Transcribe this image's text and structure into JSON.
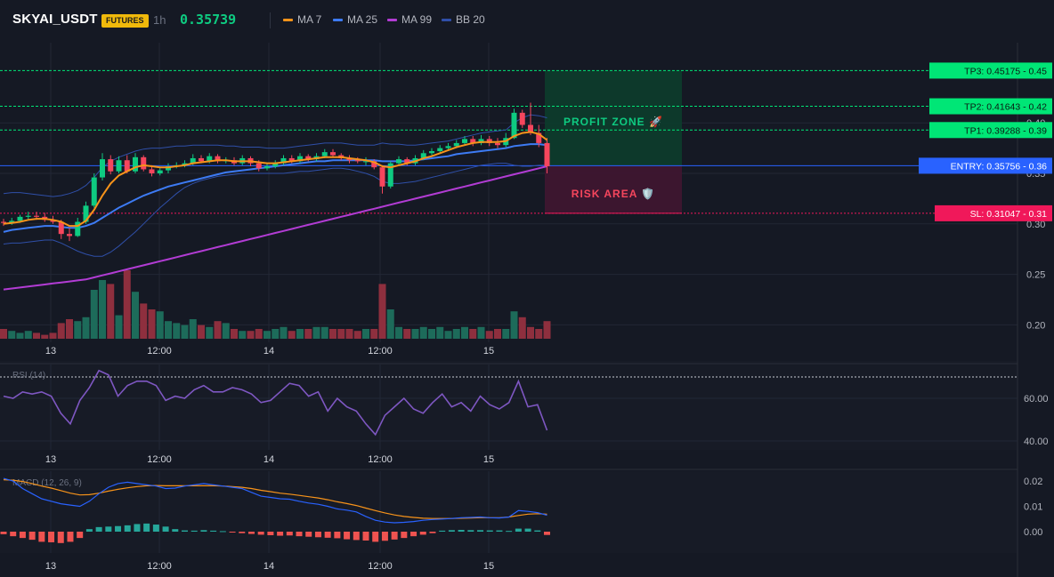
{
  "header": {
    "symbol": "SKYAI_USDT",
    "badge": "FUTURES",
    "interval": "1h",
    "price": "0.35739",
    "legend": [
      {
        "label": "MA 7",
        "color": "#f7931a"
      },
      {
        "label": "MA 25",
        "color": "#3d7bf4"
      },
      {
        "label": "MA 99",
        "color": "#b23cd4"
      },
      {
        "label": "BB 20",
        "color": "#2f4fa8"
      }
    ]
  },
  "colors": {
    "up": "#0ecb81",
    "down": "#f6465d",
    "vol_up": "#1d6b5a",
    "vol_down": "#8e2f3e",
    "grid": "#222735",
    "axis_text": "#d1d4dc",
    "entry": "#2962ff",
    "sl": "#f0185a",
    "tp": "#00e676"
  },
  "x_axis_labels": [
    "13",
    "12:00",
    "14",
    "12:00",
    "15"
  ],
  "price_axis_labels": [
    "0.40",
    "0.35",
    "0.30",
    "0.25",
    "0.20"
  ],
  "rsi": {
    "title": "RSI (14)",
    "axis_labels": [
      "60.00",
      "40.00"
    ],
    "values": [
      61,
      60,
      63,
      62,
      63,
      61,
      53,
      48,
      59,
      65,
      73,
      71,
      61,
      66,
      68,
      68,
      66,
      59,
      61,
      60,
      64,
      66,
      63,
      63,
      65,
      64,
      62,
      58,
      59,
      63,
      67,
      66,
      61,
      63,
      54,
      60,
      56,
      54,
      48,
      43,
      52,
      56,
      60,
      55,
      53,
      58,
      62,
      56,
      58,
      54,
      61,
      57,
      55,
      58,
      68,
      56,
      57,
      45
    ]
  },
  "macd": {
    "title": "MACD (12, 26, 9)",
    "axis_labels": [
      "0.02",
      "0.01",
      "0.00"
    ],
    "macd_line": [
      0.021,
      0.02,
      0.017,
      0.015,
      0.013,
      0.012,
      0.011,
      0.0105,
      0.01,
      0.012,
      0.015,
      0.0175,
      0.019,
      0.0195,
      0.019,
      0.0185,
      0.018,
      0.017,
      0.0172,
      0.018,
      0.0185,
      0.019,
      0.0185,
      0.018,
      0.0175,
      0.017,
      0.0155,
      0.014,
      0.0135,
      0.013,
      0.0128,
      0.012,
      0.0113,
      0.0108,
      0.01,
      0.009,
      0.0085,
      0.0078,
      0.006,
      0.0045,
      0.0038,
      0.0035,
      0.0037,
      0.004,
      0.0045,
      0.0048,
      0.005,
      0.0052,
      0.0055,
      0.0056,
      0.0058,
      0.0055,
      0.0054,
      0.0058,
      0.0083,
      0.008,
      0.0075,
      0.0065
    ],
    "signal_line": [
      0.0205,
      0.0203,
      0.0198,
      0.019,
      0.018,
      0.0172,
      0.0162,
      0.0152,
      0.0145,
      0.0146,
      0.0152,
      0.016,
      0.0167,
      0.0173,
      0.0178,
      0.0181,
      0.0182,
      0.0181,
      0.0181,
      0.0181,
      0.0181,
      0.0181,
      0.0181,
      0.018,
      0.0178,
      0.0175,
      0.017,
      0.0163,
      0.0158,
      0.0152,
      0.0148,
      0.0143,
      0.0138,
      0.0133,
      0.0126,
      0.0118,
      0.0111,
      0.0103,
      0.0093,
      0.0083,
      0.0074,
      0.0066,
      0.006,
      0.0056,
      0.0053,
      0.0052,
      0.0052,
      0.0052,
      0.0053,
      0.0054,
      0.0055,
      0.0055,
      0.0055,
      0.0058,
      0.0064,
      0.0069,
      0.0071,
      0.0069
    ],
    "histogram": [
      -0.001,
      -0.0018,
      -0.0025,
      -0.0032,
      -0.004,
      -0.0042,
      -0.0045,
      -0.004,
      -0.0025,
      0.001,
      0.0018,
      0.002,
      0.0022,
      0.0025,
      0.003,
      0.0032,
      0.0028,
      0.002,
      0.001,
      0.0005,
      0.0004,
      0.0006,
      0.0004,
      0.0002,
      -0.0002,
      -0.0006,
      -0.0009,
      -0.0012,
      -0.0014,
      -0.0016,
      -0.0015,
      -0.0018,
      -0.002,
      -0.0022,
      -0.0024,
      -0.0026,
      -0.003,
      -0.0033,
      -0.0035,
      -0.004,
      -0.0036,
      -0.0031,
      -0.0025,
      -0.0018,
      -0.0012,
      -0.0006,
      0.0004,
      0.0006,
      0.0007,
      0.0006,
      0.0006,
      0.0005,
      0.0005,
      0.0003,
      0.0012,
      0.0012,
      0.0005,
      -0.0013
    ]
  },
  "trade_levels": {
    "tp3": {
      "label": "TP3: 0.45175",
      "axis": "0.45",
      "value": 0.45175
    },
    "tp2": {
      "label": "TP2: 0.41643",
      "axis": "0.42",
      "value": 0.41643
    },
    "tp1": {
      "label": "TP1: 0.39288",
      "axis": "0.39",
      "value": 0.39288
    },
    "entry": {
      "label": "ENTRY: 0.35756",
      "axis": "0.36",
      "value": 0.35756
    },
    "sl": {
      "label": "SL: 0.31047",
      "axis": "0.31",
      "value": 0.31047
    }
  },
  "zones": {
    "profit": "PROFIT ZONE 🚀",
    "risk": "RISK AREA 🛡️"
  },
  "chart_data": {
    "type": "candlestick",
    "interval": "1h",
    "series_open": [
      0.302,
      0.301,
      0.303,
      0.307,
      0.308,
      0.307,
      0.304,
      0.302,
      0.29,
      0.288,
      0.302,
      0.318,
      0.346,
      0.364,
      0.352,
      0.363,
      0.352,
      0.366,
      0.354,
      0.35,
      0.353,
      0.357,
      0.358,
      0.36,
      0.365,
      0.362,
      0.367,
      0.362,
      0.363,
      0.36,
      0.365,
      0.36,
      0.355,
      0.357,
      0.36,
      0.365,
      0.362,
      0.367,
      0.364,
      0.367,
      0.371,
      0.368,
      0.365,
      0.363,
      0.362,
      0.362,
      0.356,
      0.337,
      0.36,
      0.364,
      0.36,
      0.365,
      0.37,
      0.372,
      0.375,
      0.377,
      0.38,
      0.384,
      0.38,
      0.384,
      0.38,
      0.378,
      0.385,
      0.41,
      0.398,
      0.39,
      0.38
    ],
    "series_close": [
      0.301,
      0.303,
      0.307,
      0.308,
      0.307,
      0.304,
      0.302,
      0.29,
      0.288,
      0.302,
      0.318,
      0.346,
      0.364,
      0.352,
      0.363,
      0.352,
      0.366,
      0.354,
      0.35,
      0.353,
      0.357,
      0.358,
      0.36,
      0.365,
      0.362,
      0.367,
      0.362,
      0.363,
      0.36,
      0.365,
      0.36,
      0.355,
      0.357,
      0.36,
      0.365,
      0.362,
      0.367,
      0.364,
      0.367,
      0.371,
      0.368,
      0.365,
      0.363,
      0.362,
      0.362,
      0.356,
      0.337,
      0.36,
      0.364,
      0.36,
      0.365,
      0.37,
      0.372,
      0.375,
      0.377,
      0.38,
      0.384,
      0.38,
      0.384,
      0.38,
      0.378,
      0.385,
      0.41,
      0.398,
      0.39,
      0.38,
      0.357
    ],
    "series_high": [
      0.305,
      0.306,
      0.309,
      0.312,
      0.312,
      0.311,
      0.308,
      0.304,
      0.296,
      0.306,
      0.322,
      0.35,
      0.37,
      0.368,
      0.367,
      0.368,
      0.37,
      0.368,
      0.358,
      0.356,
      0.36,
      0.361,
      0.363,
      0.369,
      0.368,
      0.37,
      0.369,
      0.366,
      0.366,
      0.368,
      0.367,
      0.363,
      0.36,
      0.363,
      0.368,
      0.368,
      0.37,
      0.369,
      0.37,
      0.374,
      0.374,
      0.37,
      0.368,
      0.366,
      0.366,
      0.364,
      0.358,
      0.362,
      0.367,
      0.366,
      0.368,
      0.373,
      0.375,
      0.378,
      0.38,
      0.383,
      0.387,
      0.387,
      0.388,
      0.387,
      0.385,
      0.39,
      0.414,
      0.413,
      0.42,
      0.398,
      0.385
    ],
    "series_low": [
      0.298,
      0.299,
      0.301,
      0.304,
      0.304,
      0.302,
      0.3,
      0.285,
      0.283,
      0.287,
      0.3,
      0.316,
      0.343,
      0.349,
      0.35,
      0.35,
      0.35,
      0.352,
      0.347,
      0.348,
      0.35,
      0.355,
      0.356,
      0.358,
      0.36,
      0.36,
      0.36,
      0.36,
      0.358,
      0.358,
      0.357,
      0.352,
      0.353,
      0.355,
      0.358,
      0.36,
      0.36,
      0.362,
      0.362,
      0.365,
      0.366,
      0.363,
      0.36,
      0.36,
      0.358,
      0.354,
      0.33,
      0.335,
      0.358,
      0.358,
      0.358,
      0.363,
      0.368,
      0.37,
      0.373,
      0.375,
      0.378,
      0.377,
      0.378,
      0.377,
      0.375,
      0.376,
      0.384,
      0.395,
      0.388,
      0.376,
      0.35
    ],
    "volume": [
      5,
      4,
      3,
      4,
      3,
      2,
      3,
      8,
      10,
      9,
      11,
      25,
      30,
      28,
      12,
      35,
      24,
      18,
      15,
      14,
      9,
      8,
      7,
      10,
      7,
      6,
      9,
      8,
      5,
      4,
      4,
      5,
      4,
      5,
      6,
      4,
      5,
      5,
      6,
      6,
      5,
      5,
      5,
      4,
      5,
      5,
      28,
      15,
      6,
      5,
      5,
      6,
      5,
      6,
      4,
      5,
      6,
      5,
      6,
      4,
      5,
      5,
      14,
      11,
      6,
      5,
      9
    ],
    "ma7": [
      0.3,
      0.301,
      0.302,
      0.304,
      0.305,
      0.305,
      0.304,
      0.302,
      0.298,
      0.298,
      0.303,
      0.314,
      0.328,
      0.34,
      0.348,
      0.352,
      0.356,
      0.358,
      0.357,
      0.356,
      0.356,
      0.357,
      0.358,
      0.36,
      0.361,
      0.362,
      0.363,
      0.363,
      0.362,
      0.362,
      0.362,
      0.361,
      0.36,
      0.36,
      0.361,
      0.362,
      0.363,
      0.364,
      0.365,
      0.366,
      0.366,
      0.366,
      0.365,
      0.364,
      0.363,
      0.361,
      0.357,
      0.356,
      0.358,
      0.36,
      0.362,
      0.365,
      0.367,
      0.37,
      0.373,
      0.376,
      0.378,
      0.38,
      0.381,
      0.381,
      0.381,
      0.382,
      0.387,
      0.39,
      0.391,
      0.389,
      0.383
    ],
    "ma25": [
      0.292,
      0.294,
      0.295,
      0.296,
      0.297,
      0.298,
      0.298,
      0.297,
      0.296,
      0.296,
      0.298,
      0.301,
      0.306,
      0.311,
      0.316,
      0.32,
      0.324,
      0.328,
      0.331,
      0.334,
      0.337,
      0.339,
      0.341,
      0.343,
      0.345,
      0.347,
      0.349,
      0.351,
      0.352,
      0.353,
      0.354,
      0.355,
      0.356,
      0.357,
      0.358,
      0.359,
      0.36,
      0.361,
      0.362,
      0.362,
      0.363,
      0.363,
      0.363,
      0.363,
      0.363,
      0.363,
      0.362,
      0.362,
      0.362,
      0.362,
      0.363,
      0.364,
      0.365,
      0.366,
      0.367,
      0.369,
      0.37,
      0.371,
      0.372,
      0.373,
      0.374,
      0.375,
      0.377,
      0.378,
      0.379,
      0.379,
      0.378
    ],
    "ma99": [
      0.235,
      0.236,
      0.237,
      0.238,
      0.239,
      0.24,
      0.241,
      0.242,
      0.243,
      0.244,
      0.245,
      0.247,
      0.249,
      0.251,
      0.253,
      0.255,
      0.257,
      0.259,
      0.261,
      0.263,
      0.265,
      0.267,
      0.269,
      0.271,
      0.273,
      0.275,
      0.277,
      0.279,
      0.281,
      0.283,
      0.285,
      0.287,
      0.289,
      0.291,
      0.293,
      0.295,
      0.297,
      0.299,
      0.301,
      0.303,
      0.305,
      0.307,
      0.309,
      0.311,
      0.313,
      0.315,
      0.317,
      0.319,
      0.321,
      0.323,
      0.325,
      0.327,
      0.329,
      0.331,
      0.333,
      0.335,
      0.337,
      0.339,
      0.341,
      0.343,
      0.345,
      0.347,
      0.349,
      0.351,
      0.353,
      0.355,
      0.357
    ],
    "bb_upper": [
      0.33,
      0.331,
      0.331,
      0.33,
      0.329,
      0.328,
      0.327,
      0.328,
      0.33,
      0.333,
      0.338,
      0.346,
      0.356,
      0.362,
      0.366,
      0.369,
      0.372,
      0.374,
      0.375,
      0.375,
      0.376,
      0.377,
      0.377,
      0.378,
      0.378,
      0.378,
      0.378,
      0.377,
      0.377,
      0.376,
      0.376,
      0.376,
      0.375,
      0.375,
      0.375,
      0.376,
      0.377,
      0.378,
      0.379,
      0.38,
      0.38,
      0.38,
      0.379,
      0.378,
      0.378,
      0.378,
      0.38,
      0.379,
      0.379,
      0.378,
      0.378,
      0.379,
      0.38,
      0.381,
      0.382,
      0.384,
      0.386,
      0.388,
      0.39,
      0.391,
      0.392,
      0.393,
      0.4,
      0.405,
      0.408,
      0.407,
      0.405
    ],
    "bb_lower": [
      0.28,
      0.281,
      0.281,
      0.282,
      0.283,
      0.284,
      0.284,
      0.281,
      0.277,
      0.273,
      0.27,
      0.268,
      0.268,
      0.272,
      0.278,
      0.285,
      0.292,
      0.3,
      0.308,
      0.316,
      0.323,
      0.33,
      0.336,
      0.34,
      0.343,
      0.345,
      0.347,
      0.348,
      0.349,
      0.35,
      0.35,
      0.35,
      0.35,
      0.35,
      0.35,
      0.351,
      0.352,
      0.352,
      0.353,
      0.354,
      0.355,
      0.355,
      0.354,
      0.352,
      0.35,
      0.347,
      0.342,
      0.34,
      0.34,
      0.341,
      0.342,
      0.344,
      0.346,
      0.348,
      0.35,
      0.352,
      0.354,
      0.356,
      0.358,
      0.359,
      0.36,
      0.36,
      0.358,
      0.357,
      0.357,
      0.358,
      0.358
    ]
  }
}
